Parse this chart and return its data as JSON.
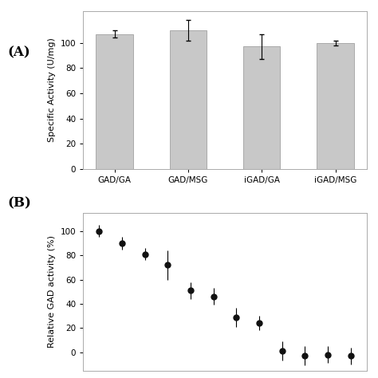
{
  "bar_categories": [
    "GAD/GA",
    "GAD/MSG",
    "iGAD/GA",
    "iGAD/MSG"
  ],
  "bar_values": [
    107,
    110,
    97,
    100
  ],
  "bar_errors": [
    3,
    8,
    10,
    2
  ],
  "bar_color": "#c8c8c8",
  "bar_ylabel": "Specific Activity (U/mg)",
  "bar_ylim": [
    0,
    125
  ],
  "bar_yticks": [
    0,
    20,
    40,
    60,
    80,
    100
  ],
  "panel_a_label": "(A)",
  "panel_b_label": "(B)",
  "scatter_x": [
    1,
    2,
    3,
    4,
    5,
    6,
    7,
    8,
    9,
    10,
    11,
    12
  ],
  "scatter_y": [
    100,
    90,
    81,
    72,
    51,
    46,
    29,
    24,
    1,
    -3,
    -2,
    -3
  ],
  "scatter_yerr": [
    5,
    5,
    5,
    12,
    7,
    7,
    8,
    6,
    8,
    8,
    7,
    7
  ],
  "scatter_ylabel": "Relative GAD activity (%)",
  "scatter_ylim": [
    -15,
    115
  ],
  "scatter_yticks": [
    0,
    20,
    40,
    60,
    80,
    100
  ],
  "background_color": "#ffffff",
  "spine_color": "#aaaaaa",
  "dot_color": "#111111",
  "dot_size": 5,
  "tick_fontsize": 7.5,
  "ylabel_fontsize": 8,
  "label_fontsize": 12
}
